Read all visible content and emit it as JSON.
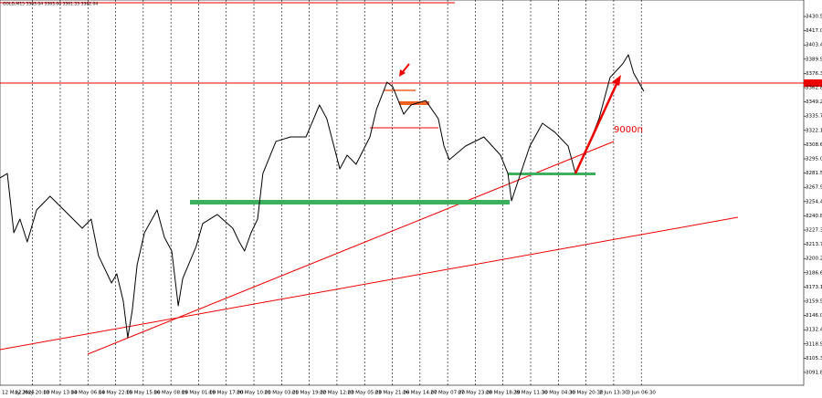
{
  "chart_data": {
    "type": "line",
    "subtitle": "GOLD,M15  3363.04 3363.00 3361.53 3362.04",
    "annotation": "9000п",
    "xlim": [
      0,
      1975
    ],
    "ylim": [
      3079.6,
      3446.2
    ],
    "xticks": [
      {
        "value": 0,
        "label": "12 May 2025"
      },
      {
        "value": 80,
        "label": "12 May 20:00"
      },
      {
        "value": 148,
        "label": "13 May 13:00"
      },
      {
        "value": 216,
        "label": "14 May 06:00"
      },
      {
        "value": 284,
        "label": "14 May 22:00"
      },
      {
        "value": 352,
        "label": "15 May 15:00"
      },
      {
        "value": 420,
        "label": "16 May 08:00"
      },
      {
        "value": 488,
        "label": "19 May 01:00"
      },
      {
        "value": 556,
        "label": "19 May 17:00"
      },
      {
        "value": 624,
        "label": "20 May 10:00"
      },
      {
        "value": 692,
        "label": "21 May 03:00"
      },
      {
        "value": 760,
        "label": "21 May 19:00"
      },
      {
        "value": 828,
        "label": "22 May 12:00"
      },
      {
        "value": 896,
        "label": "23 May 05:00"
      },
      {
        "value": 964,
        "label": "23 May 21:00"
      },
      {
        "value": 1032,
        "label": "26 May 14:00"
      },
      {
        "value": 1100,
        "label": "27 May 07:00"
      },
      {
        "value": 1168,
        "label": "27 May 23:00"
      },
      {
        "value": 1236,
        "label": "28 May 18:30"
      },
      {
        "value": 1304,
        "label": "29 May 11:30"
      },
      {
        "value": 1372,
        "label": "30 May 04:30"
      },
      {
        "value": 1440,
        "label": "30 May 20:30"
      },
      {
        "value": 1508,
        "label": "2 Jun 13:30"
      },
      {
        "value": 1576,
        "label": "3 Jun 06:30"
      }
    ],
    "yticks": [
      {
        "value": 3091.8,
        "label": "3091.80"
      },
      3105.35,
      {
        "value": 3118.9,
        "label": "3118.90"
      },
      3132.45,
      {
        "value": 3146,
        "label": "3146.00"
      },
      3159.55,
      {
        "value": 3173.1,
        "label": "3173.10"
      },
      3186.65,
      {
        "value": 3200.2,
        "label": "3200.20"
      },
      3213.75,
      {
        "value": 3227.3,
        "label": "3227.30"
      },
      3240.85,
      {
        "value": 3254.4,
        "label": "3254.40"
      },
      3267.95,
      {
        "value": 3281.5,
        "label": "3281.50"
      },
      3295.05,
      {
        "value": 3308.6,
        "label": "3308.60"
      },
      3322.15,
      {
        "value": 3335.7,
        "label": "3335.70"
      },
      3349.25,
      {
        "value": 3362.8,
        "label": "3362.80"
      },
      3376.35,
      {
        "value": 3389.9,
        "label": "3389.90"
      },
      3403.45,
      {
        "value": 3417,
        "label": "3417.00"
      },
      3430.55
    ],
    "grid": true,
    "series": [
      {
        "name": "GOLD",
        "color": "#000000",
        "x": [
          0,
          18,
          34,
          49,
          67,
          90,
          123,
          157,
          202,
          224,
          242,
          274,
          287,
          303,
          314,
          325,
          337,
          355,
          386,
          404,
          422,
          438,
          449,
          482,
          498,
          534,
          572,
          588,
          601,
          617,
          633,
          646,
          678,
          714,
          752,
          785,
          803,
          835,
          853,
          875,
          909,
          925,
          951,
          965,
          992,
          1010,
          1046,
          1077,
          1091,
          1104,
          1144,
          1189,
          1230,
          1248,
          1257,
          1268,
          1302,
          1333,
          1364,
          1396,
          1414,
          1441,
          1472,
          1499,
          1530,
          1544,
          1557,
          1582
        ],
        "values": [
          3276.8,
          3281.1,
          3224.7,
          3237.7,
          3216.0,
          3246.4,
          3259.4,
          3246.4,
          3229.0,
          3237.7,
          3202.9,
          3176.9,
          3185.6,
          3159.5,
          3124.8,
          3150.8,
          3194.3,
          3224.7,
          3246.4,
          3220.3,
          3207.3,
          3155.2,
          3181.2,
          3211.6,
          3233.4,
          3242.1,
          3229.0,
          3216.0,
          3207.3,
          3224.7,
          3237.7,
          3281.1,
          3311.6,
          3315.9,
          3315.9,
          3346.3,
          3333.3,
          3285.5,
          3298.5,
          3289.8,
          3315.9,
          3342.0,
          3368.0,
          3363.7,
          3337.6,
          3346.3,
          3350.6,
          3333.3,
          3307.2,
          3294.2,
          3307.2,
          3315.9,
          3298.5,
          3281.1,
          3255.1,
          3268.1,
          3307.2,
          3328.9,
          3320.2,
          3307.2,
          3281.1,
          3302.9,
          3333.3,
          3372.4,
          3385.4,
          3394.1,
          3376.7,
          3359.3
        ]
      }
    ]
  }
}
